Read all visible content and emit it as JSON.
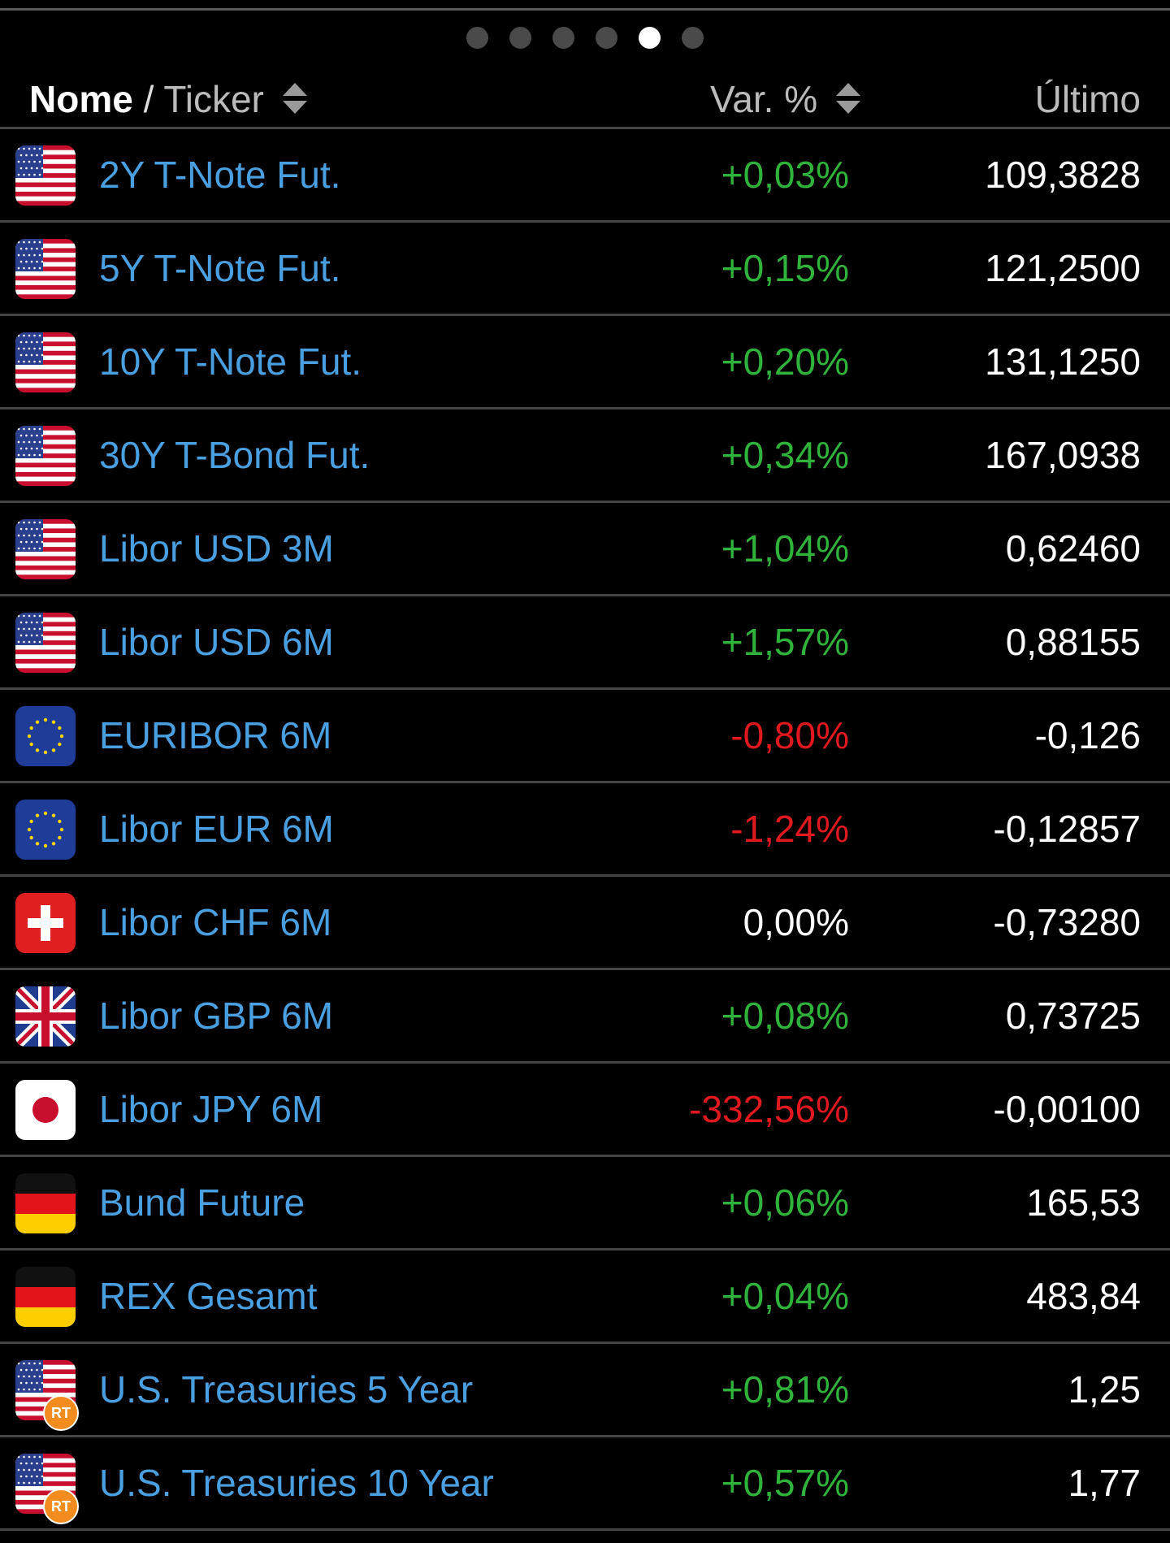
{
  "pager": {
    "count": 6,
    "active_index": 4
  },
  "header": {
    "name_label": "Nome",
    "separator": "/",
    "ticker_label": "Ticker",
    "var_label": "Var. %",
    "last_label": "Último"
  },
  "rows": [
    {
      "flag": "us-flag-icon",
      "name": "2Y T-Note Fut.",
      "var": "+0,03%",
      "trend": "pos",
      "last": "109,3828",
      "rt": false
    },
    {
      "flag": "us-flag-icon",
      "name": "5Y T-Note Fut.",
      "var": "+0,15%",
      "trend": "pos",
      "last": "121,2500",
      "rt": false
    },
    {
      "flag": "us-flag-icon",
      "name": "10Y T-Note Fut.",
      "var": "+0,20%",
      "trend": "pos",
      "last": "131,1250",
      "rt": false
    },
    {
      "flag": "us-flag-icon",
      "name": "30Y T-Bond Fut.",
      "var": "+0,34%",
      "trend": "pos",
      "last": "167,0938",
      "rt": false
    },
    {
      "flag": "us-flag-icon",
      "name": "Libor USD 3M",
      "var": "+1,04%",
      "trend": "pos",
      "last": "0,62460",
      "rt": false
    },
    {
      "flag": "us-flag-icon",
      "name": "Libor USD 6M",
      "var": "+1,57%",
      "trend": "pos",
      "last": "0,88155",
      "rt": false
    },
    {
      "flag": "eu-flag-icon",
      "name": "EURIBOR 6M",
      "var": "-0,80%",
      "trend": "neg",
      "last": "-0,126",
      "rt": false
    },
    {
      "flag": "eu-flag-icon",
      "name": "Libor EUR 6M",
      "var": "-1,24%",
      "trend": "neg",
      "last": "-0,12857",
      "rt": false
    },
    {
      "flag": "ch-flag-icon",
      "name": "Libor CHF 6M",
      "var": "0,00%",
      "trend": "zero",
      "last": "-0,73280",
      "rt": false
    },
    {
      "flag": "uk-flag-icon",
      "name": "Libor GBP 6M",
      "var": "+0,08%",
      "trend": "pos",
      "last": "0,73725",
      "rt": false
    },
    {
      "flag": "jp-flag-icon",
      "name": "Libor JPY 6M",
      "var": "-332,56%",
      "trend": "neg",
      "last": "-0,00100",
      "rt": false
    },
    {
      "flag": "de-flag-icon",
      "name": "Bund Future",
      "var": "+0,06%",
      "trend": "pos",
      "last": "165,53",
      "rt": false
    },
    {
      "flag": "de-flag-icon",
      "name": "REX Gesamt",
      "var": "+0,04%",
      "trend": "pos",
      "last": "483,84",
      "rt": false
    },
    {
      "flag": "us-flag-icon",
      "name": "U.S. Treasuries 5 Year",
      "var": "+0,81%",
      "trend": "pos",
      "last": "1,25",
      "rt": true
    },
    {
      "flag": "us-flag-icon",
      "name": "U.S. Treasuries 10 Year",
      "var": "+0,57%",
      "trend": "pos",
      "last": "1,77",
      "rt": true
    }
  ],
  "rt_badge_label": "RT",
  "colors": {
    "positive": "#2fb33b",
    "negative": "#e0191e",
    "name_link": "#4a9fe0"
  }
}
